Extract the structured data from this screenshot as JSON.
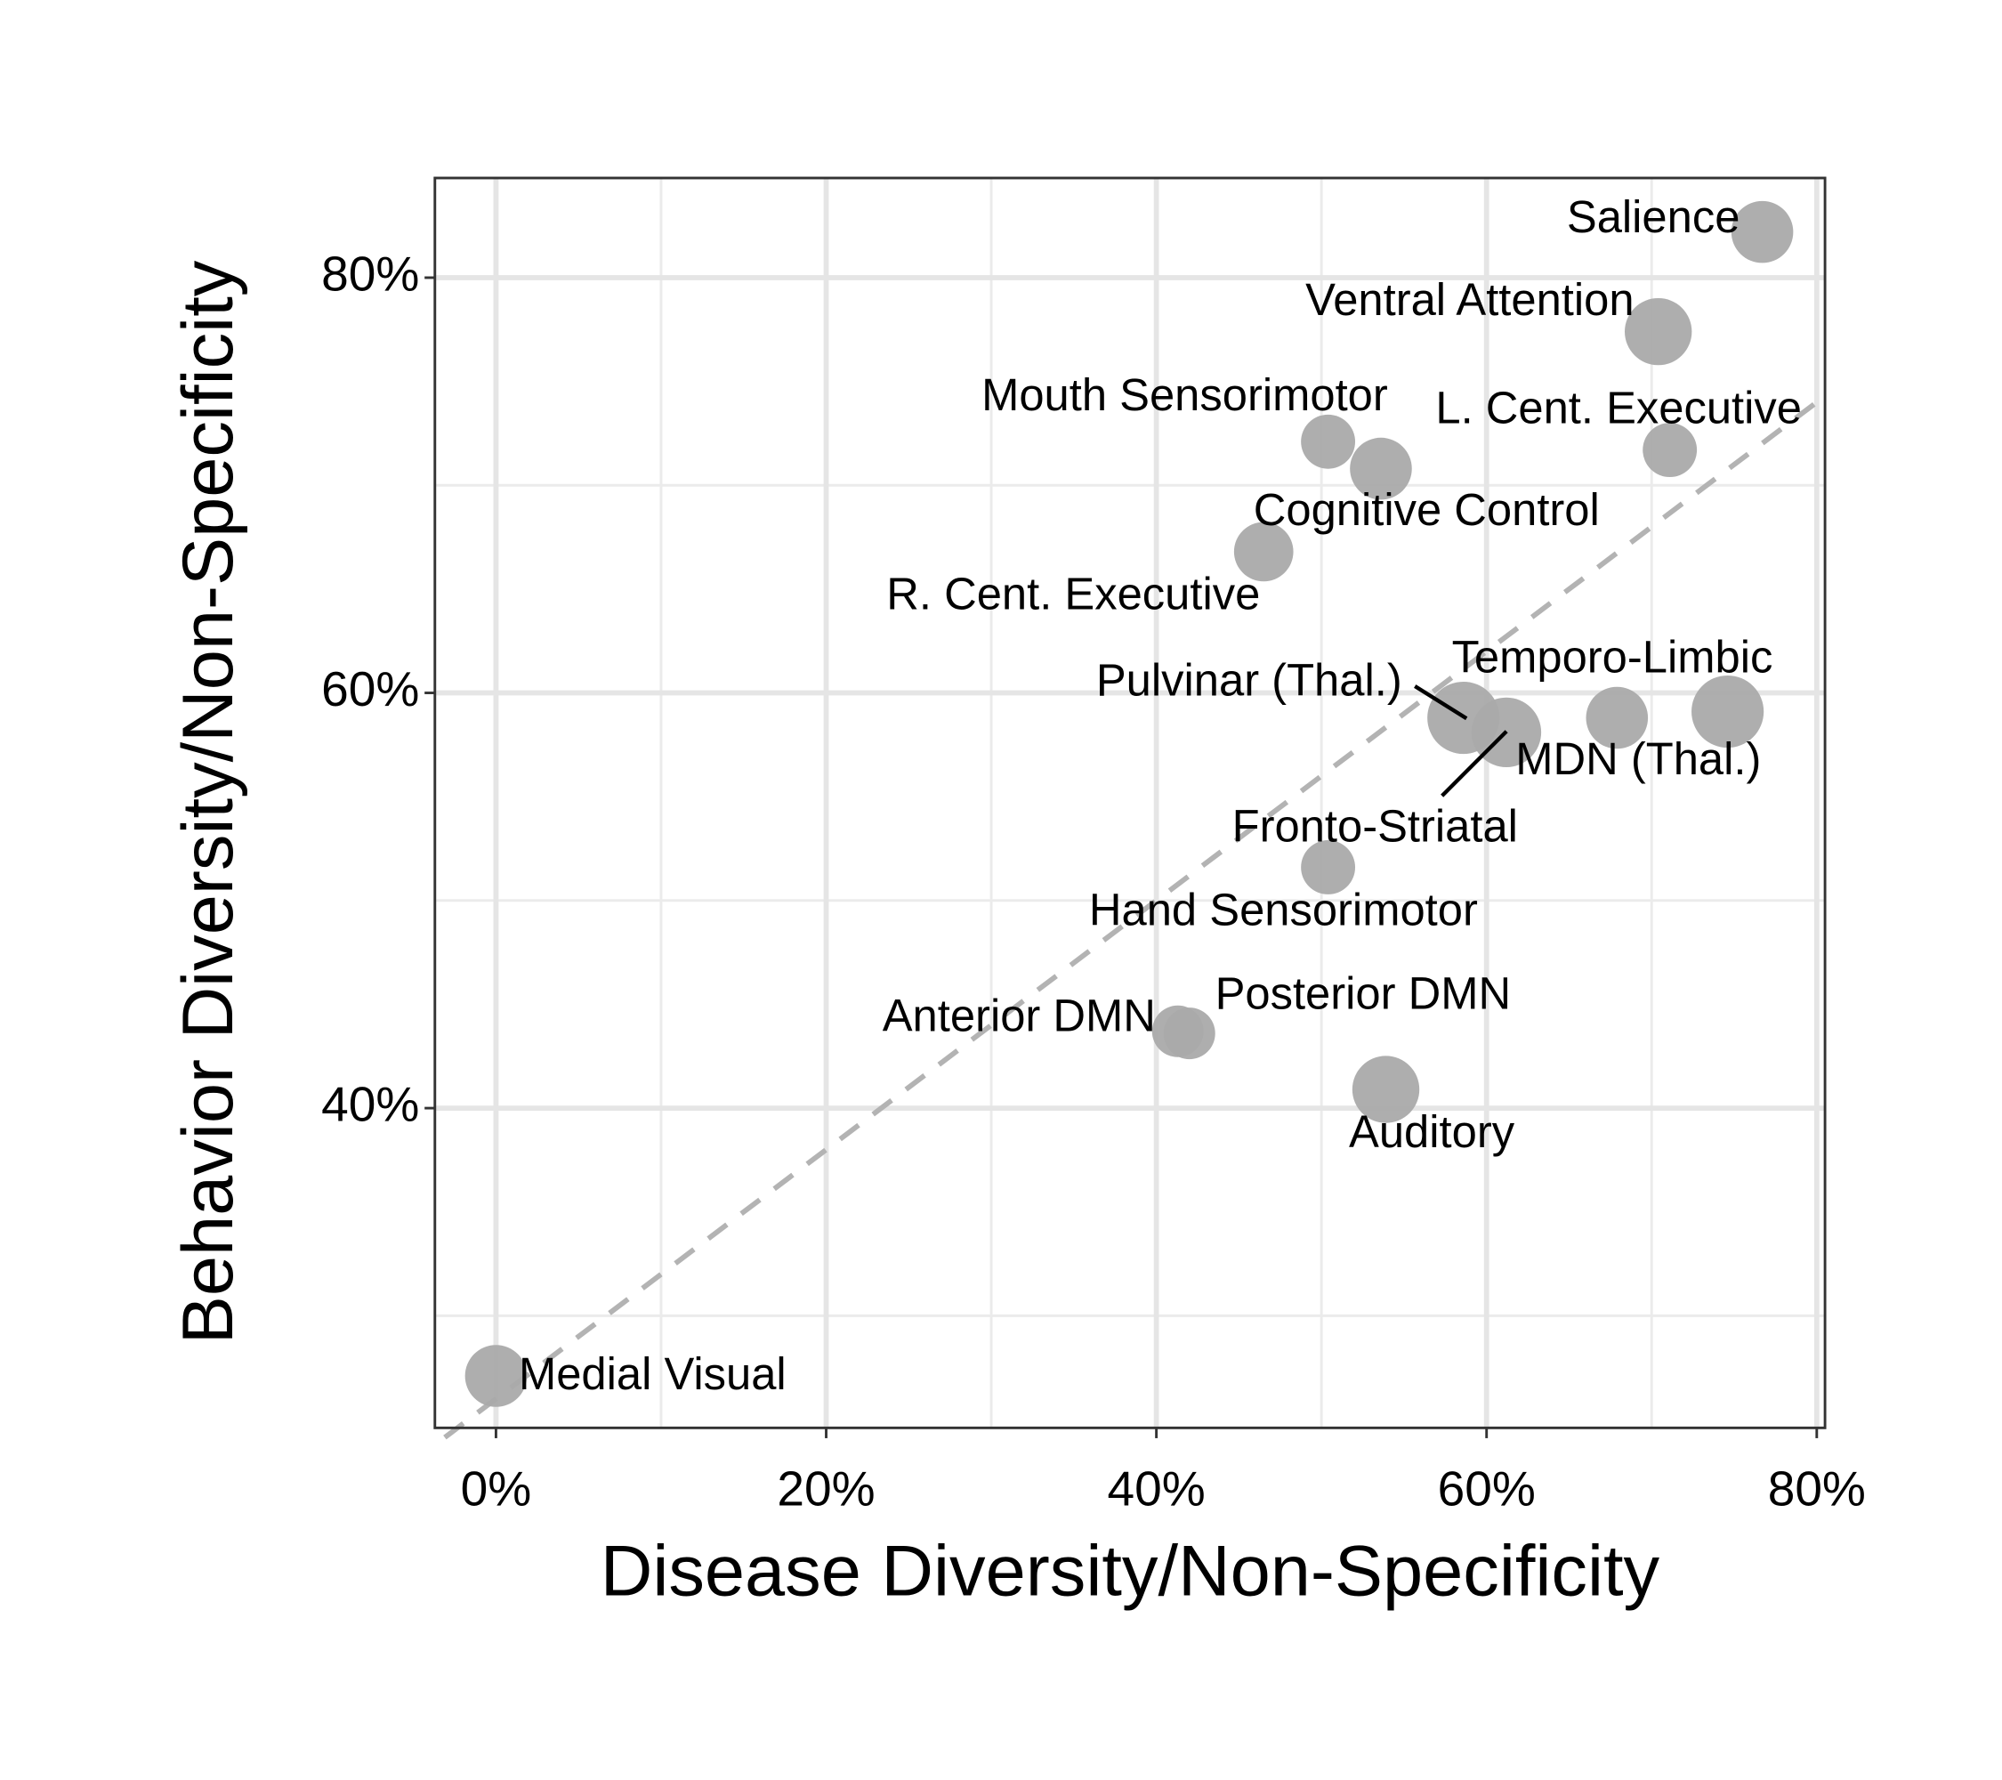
{
  "chart_data": {
    "type": "scatter",
    "x_label": "Disease Diversity/Non-Specificity",
    "y_label": "Behavior Diversity/Non-Specificity",
    "labels": [
      "Medial Visual",
      "Anterior DMN",
      "Posterior DMN",
      "Auditory",
      "Hand Sensorimotor",
      "Pulvinar (Thal.)",
      "Fronto-Striatal",
      "MDN (Thal.)",
      "Temporo-Limbic",
      "R. Cent. Executive",
      "Cognitive Control",
      "Mouth Sensorimotor",
      "L. Cent. Executive",
      "Ventral Attention",
      "Salience"
    ],
    "x": [
      0,
      41.3,
      42.0,
      53.9,
      50.4,
      58.6,
      61.2,
      67.9,
      74.6,
      46.5,
      53.6,
      50.4,
      71.1,
      70.4,
      76.7
    ],
    "y": [
      27.1,
      43.7,
      43.6,
      40.9,
      51.6,
      58.8,
      58.1,
      58.8,
      59.1,
      66.8,
      70.8,
      72.1,
      71.7,
      77.4,
      82.2
    ],
    "sizes": [
      24,
      20,
      20,
      26,
      21,
      28,
      27,
      24,
      28,
      23,
      24,
      21,
      21,
      26,
      24
    ],
    "color": "#aaaaaa",
    "trend_line": {
      "slope": 0.6,
      "intercept": 26,
      "color": "#b3b3b3"
    },
    "xlim": [
      -3.7,
      80.5
    ],
    "ylim": [
      24.6,
      84.8
    ],
    "xticks": [
      {
        "value": 0,
        "label": "0%"
      },
      {
        "value": 20,
        "label": "20%"
      },
      {
        "value": 40,
        "label": "40%"
      },
      {
        "value": 60,
        "label": "60%"
      },
      {
        "value": 80,
        "label": "80%"
      }
    ],
    "yticks": [
      {
        "value": 40,
        "label": "40%"
      },
      {
        "value": 60,
        "label": "60%"
      },
      {
        "value": 80,
        "label": "80%"
      }
    ],
    "xminorticks": [
      10,
      30,
      50,
      70
    ],
    "yminorticks": [
      30,
      50,
      70
    ],
    "grid": true
  }
}
